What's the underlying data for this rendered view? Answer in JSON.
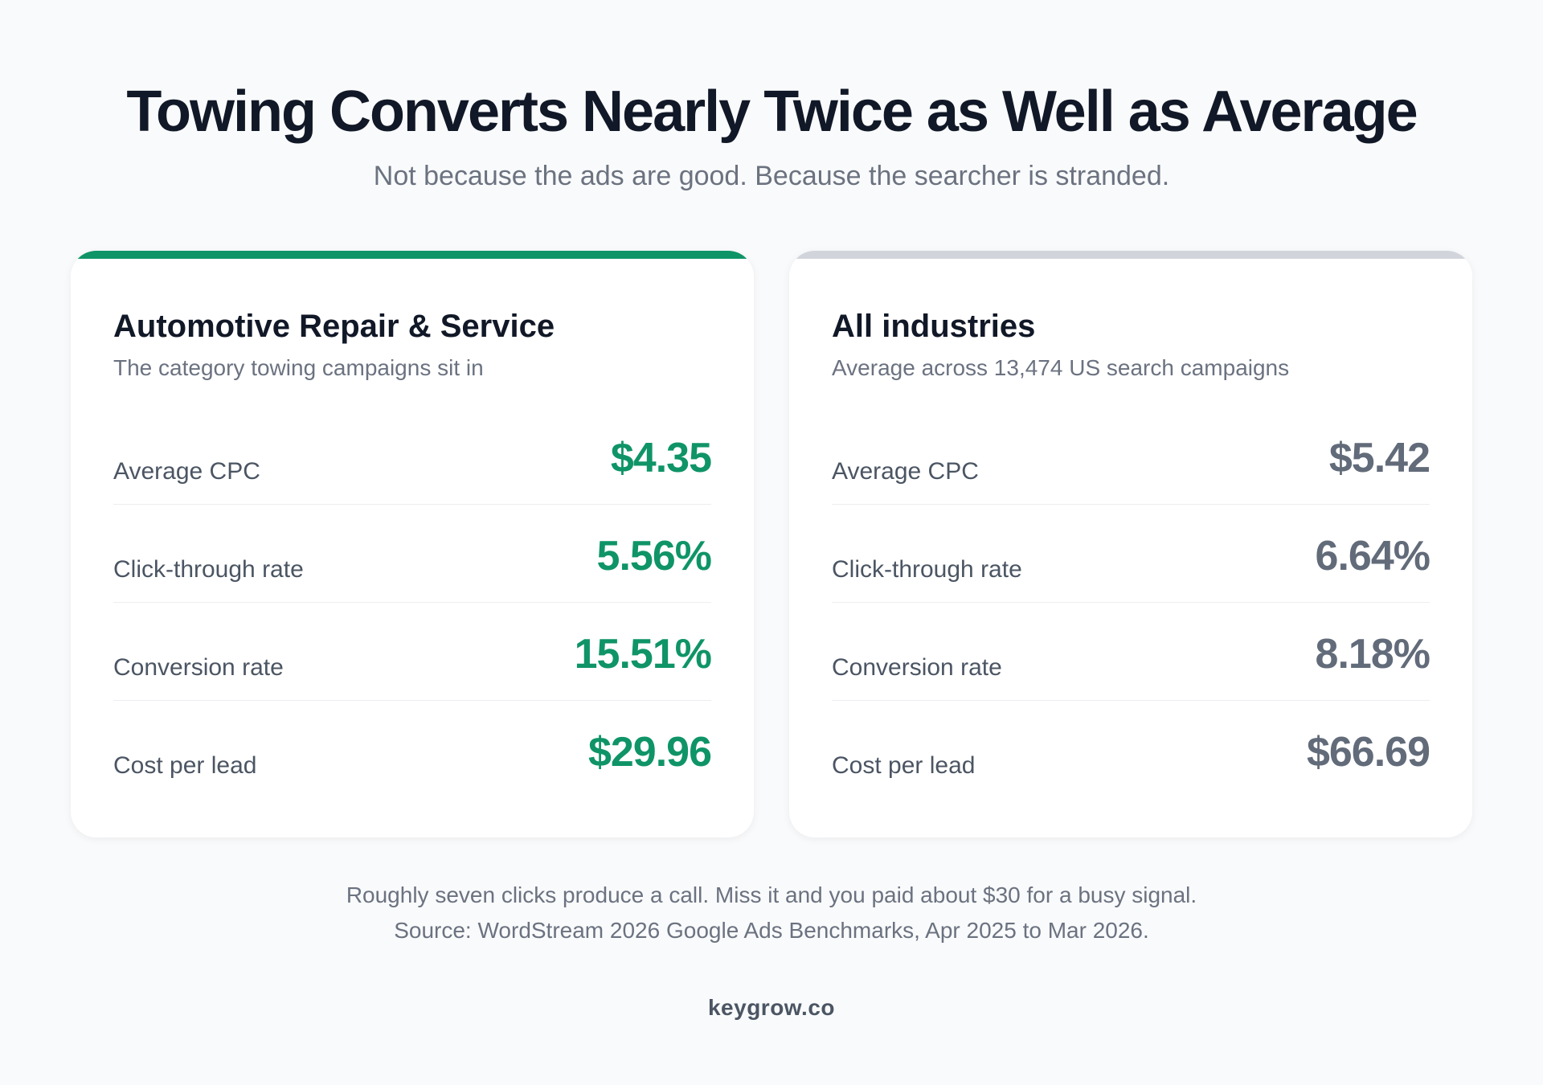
{
  "header": {
    "title": "Towing Converts Nearly Twice as Well as Average",
    "subtitle": "Not because the ads are good. Because the searcher is stranded."
  },
  "cards": [
    {
      "title": "Automotive Repair & Service",
      "subtitle": "The category towing campaigns sit in",
      "accent_color": "#0f9467",
      "metrics": [
        {
          "label": "Average CPC",
          "value": "$4.35"
        },
        {
          "label": "Click-through rate",
          "value": "5.56%"
        },
        {
          "label": "Conversion rate",
          "value": "15.51%"
        },
        {
          "label": "Cost per lead",
          "value": "$29.96"
        }
      ]
    },
    {
      "title": "All industries",
      "subtitle": "Average across 13,474 US search campaigns",
      "accent_color": "#d1d5db",
      "metrics": [
        {
          "label": "Average CPC",
          "value": "$5.42"
        },
        {
          "label": "Click-through rate",
          "value": "6.64%"
        },
        {
          "label": "Conversion rate",
          "value": "8.18%"
        },
        {
          "label": "Cost per lead",
          "value": "$66.69"
        }
      ]
    }
  ],
  "footer": {
    "note": "Roughly seven clicks produce a call. Miss it and you paid about $30 for a busy signal.",
    "source": "Source: WordStream 2026 Google Ads Benchmarks, Apr 2025 to Mar 2026.",
    "brand": "keygrow.co"
  }
}
